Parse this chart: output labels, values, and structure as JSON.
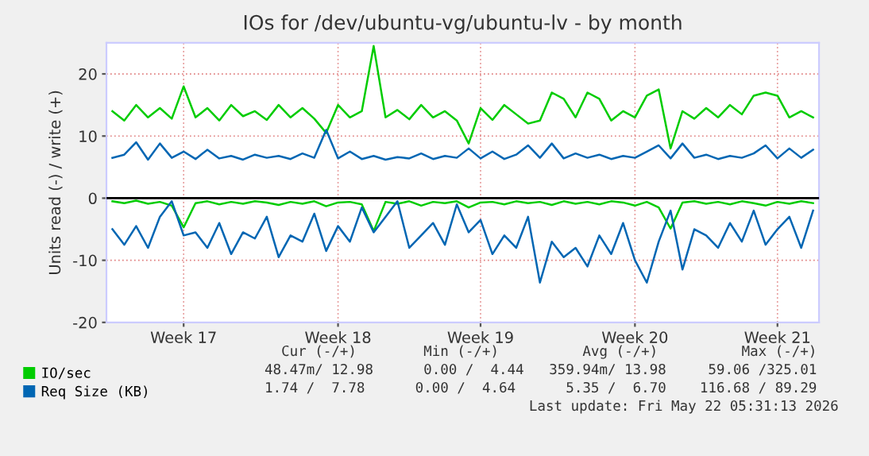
{
  "chart_data": {
    "type": "line",
    "title": "IOs for /dev/ubuntu-vg/ubuntu-lv - by month",
    "ylabel": "Units read (-) / write (+)",
    "categories": [
      null,
      null,
      null,
      null,
      null,
      null,
      "Week 17",
      null,
      null,
      null,
      null,
      null,
      null,
      null,
      null,
      null,
      null,
      null,
      null,
      "Week 18",
      null,
      null,
      null,
      null,
      null,
      null,
      null,
      null,
      null,
      null,
      null,
      "Week 19",
      null,
      null,
      null,
      null,
      null,
      null,
      null,
      null,
      null,
      null,
      null,
      null,
      "Week 20",
      null,
      null,
      null,
      null,
      null,
      null,
      null,
      null,
      null,
      null,
      null,
      "Week 21",
      null,
      null,
      null
    ],
    "series": [
      {
        "name": "IO/sec",
        "color": "#00cc00",
        "values": [
          14,
          12.5,
          15,
          13,
          14.5,
          12.8,
          18,
          13,
          14.5,
          12.5,
          15,
          13.2,
          14,
          12.6,
          15,
          13,
          14.5,
          12.8,
          10.5,
          15,
          13,
          14,
          24.5,
          13,
          14.2,
          12.7,
          15,
          13,
          14,
          12.5,
          8.8,
          14.5,
          12.6,
          15,
          13.5,
          12,
          12.5,
          17,
          16,
          13,
          17,
          16,
          12.5,
          14,
          13,
          16.5,
          17.5,
          8,
          14,
          12.8,
          14.5,
          13,
          15,
          13.5,
          16.5,
          17,
          16.5,
          13,
          14,
          13
        ]
      },
      {
        "color": "#00cc00",
        "values": [
          -0.5,
          -0.8,
          -0.4,
          -0.9,
          -0.6,
          -1.2,
          -4.7,
          -0.8,
          -0.5,
          -1.0,
          -0.6,
          -0.9,
          -0.5,
          -0.7,
          -1.1,
          -0.6,
          -0.9,
          -0.5,
          -1.3,
          -0.7,
          -0.6,
          -1.0,
          -5.3,
          -0.6,
          -0.9,
          -0.5,
          -1.2,
          -0.6,
          -0.8,
          -0.5,
          -1.5,
          -0.7,
          -0.6,
          -1.0,
          -0.5,
          -0.8,
          -0.6,
          -1.1,
          -0.5,
          -0.9,
          -0.6,
          -1.0,
          -0.5,
          -0.7,
          -1.2,
          -0.6,
          -1.5,
          -4.9,
          -0.7,
          -0.5,
          -0.9,
          -0.6,
          -1.0,
          -0.5,
          -0.8,
          -1.2,
          -0.6,
          -0.9,
          -0.5,
          -0.8
        ]
      },
      {
        "name": "Req Size (KB)",
        "color": "#0066b3",
        "values": [
          6.5,
          7,
          9,
          6.2,
          8.8,
          6.5,
          7.5,
          6.3,
          7.8,
          6.4,
          6.8,
          6.2,
          7,
          6.5,
          6.8,
          6.3,
          7.2,
          6.5,
          11,
          6.4,
          7.5,
          6.3,
          6.8,
          6.2,
          6.6,
          6.4,
          7.2,
          6.3,
          6.8,
          6.5,
          8,
          6.4,
          7.5,
          6.3,
          7,
          8.5,
          6.5,
          8.8,
          6.4,
          7.2,
          6.5,
          7,
          6.3,
          6.8,
          6.5,
          7.5,
          8.5,
          6.4,
          8.8,
          6.5,
          7,
          6.3,
          6.8,
          6.5,
          7.2,
          8.5,
          6.4,
          8,
          6.5,
          7.8
        ]
      },
      {
        "color": "#0066b3",
        "values": [
          -5,
          -7.5,
          -4.5,
          -8,
          -3,
          -0.5,
          -6,
          -5.5,
          -8,
          -4,
          -9,
          -5.5,
          -6.5,
          -3,
          -9.5,
          -6,
          -7,
          -2.5,
          -8.5,
          -4.5,
          -7,
          -1.5,
          -5.5,
          -3,
          -0.5,
          -8,
          -6,
          -4,
          -7.5,
          -1,
          -5.5,
          -3.5,
          -9,
          -6,
          -8,
          -3,
          -13.6,
          -7,
          -9.5,
          -8,
          -11,
          -6,
          -9,
          -4,
          -10,
          -13.6,
          -7,
          -2,
          -11.5,
          -5,
          -6,
          -8,
          -4,
          -7,
          -2,
          -7.5,
          -5,
          -3,
          -8,
          -2
        ]
      }
    ],
    "ylim": [
      -20,
      25
    ],
    "yticks": [
      -20,
      -10,
      0,
      10,
      20
    ],
    "grid": true,
    "legend": "bottom",
    "ref_lines": [
      {
        "axis": "y",
        "value": 0,
        "color": "#000000"
      }
    ],
    "annotations": [
      "Cur (-/+)        Min (-/+)          Avg (-/+)          Max (-/+)",
      "48.47m/ 12.98      0.00 /  4.44   359.94m/ 13.98     59.06 /325.01",
      "1.74 /  7.78      0.00 /  4.64      5.35 /  6.70    116.68 / 89.29",
      "Last update: Fri May 22 05:31:13 2026"
    ]
  }
}
